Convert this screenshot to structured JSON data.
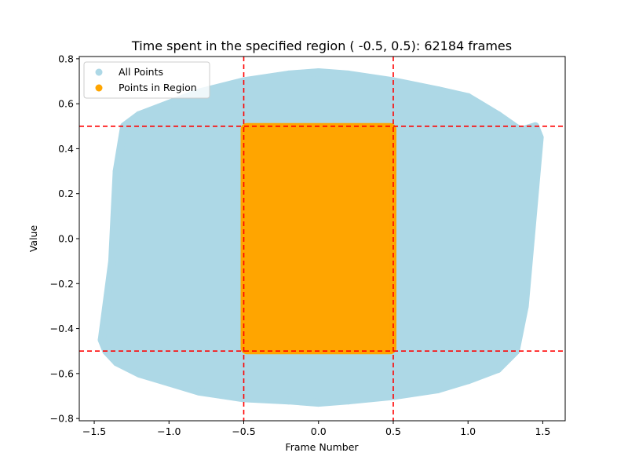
{
  "chart_data": {
    "type": "scatter",
    "title": "Time spent in the specified region ( -0.5, 0.5): 62184 frames",
    "xlabel": "Frame Number",
    "ylabel": "Value",
    "xlim": [
      -1.6,
      1.65
    ],
    "ylim": [
      -0.81,
      0.81
    ],
    "xticks": [
      -1.5,
      -1.0,
      -0.5,
      0.0,
      0.5,
      1.0,
      1.5
    ],
    "xtick_labels": [
      "−1.5",
      "−1.0",
      "−0.5",
      "0.0",
      "0.5",
      "1.0",
      "1.5"
    ],
    "yticks": [
      -0.8,
      -0.6,
      -0.4,
      -0.2,
      0.0,
      0.2,
      0.4,
      0.6,
      0.8
    ],
    "ytick_labels": [
      "−0.8",
      "−0.6",
      "−0.4",
      "−0.2",
      "0.0",
      "0.2",
      "0.4",
      "0.6",
      "0.8"
    ],
    "grid": false,
    "legend_position": "top-left",
    "series": [
      {
        "name": "All Points",
        "color": "#add8e6",
        "envelope": {
          "x": [
            -1.45,
            -1.38,
            -1.35,
            -1.3,
            -1.2,
            -1.0,
            -0.8,
            -0.5,
            -0.2,
            0.0,
            0.2,
            0.5,
            0.8,
            1.0,
            1.2,
            1.35,
            1.45,
            1.48,
            1.42,
            1.38,
            1.32,
            1.2,
            1.0,
            0.8,
            0.5,
            0.2,
            0.0,
            -0.2,
            -0.5,
            -0.8,
            -1.0,
            -1.2,
            -1.35,
            -1.42
          ],
          "y": [
            -0.45,
            -0.1,
            0.3,
            0.5,
            0.55,
            0.6,
            0.65,
            0.7,
            0.73,
            0.74,
            0.73,
            0.7,
            0.66,
            0.63,
            0.55,
            0.48,
            0.5,
            0.45,
            0.0,
            -0.3,
            -0.5,
            -0.58,
            -0.63,
            -0.67,
            -0.7,
            -0.72,
            -0.73,
            -0.72,
            -0.71,
            -0.68,
            -0.64,
            -0.6,
            -0.55,
            -0.5
          ]
        }
      },
      {
        "name": "Points in Region",
        "color": "#ffa500",
        "region": {
          "x": [
            -0.5,
            0.5
          ],
          "y": [
            -0.5,
            0.5
          ]
        }
      }
    ],
    "reference_lines": {
      "vertical": [
        -0.5,
        0.5
      ],
      "horizontal": [
        -0.5,
        0.5
      ],
      "color": "#ff0000",
      "style": "dashed"
    }
  }
}
